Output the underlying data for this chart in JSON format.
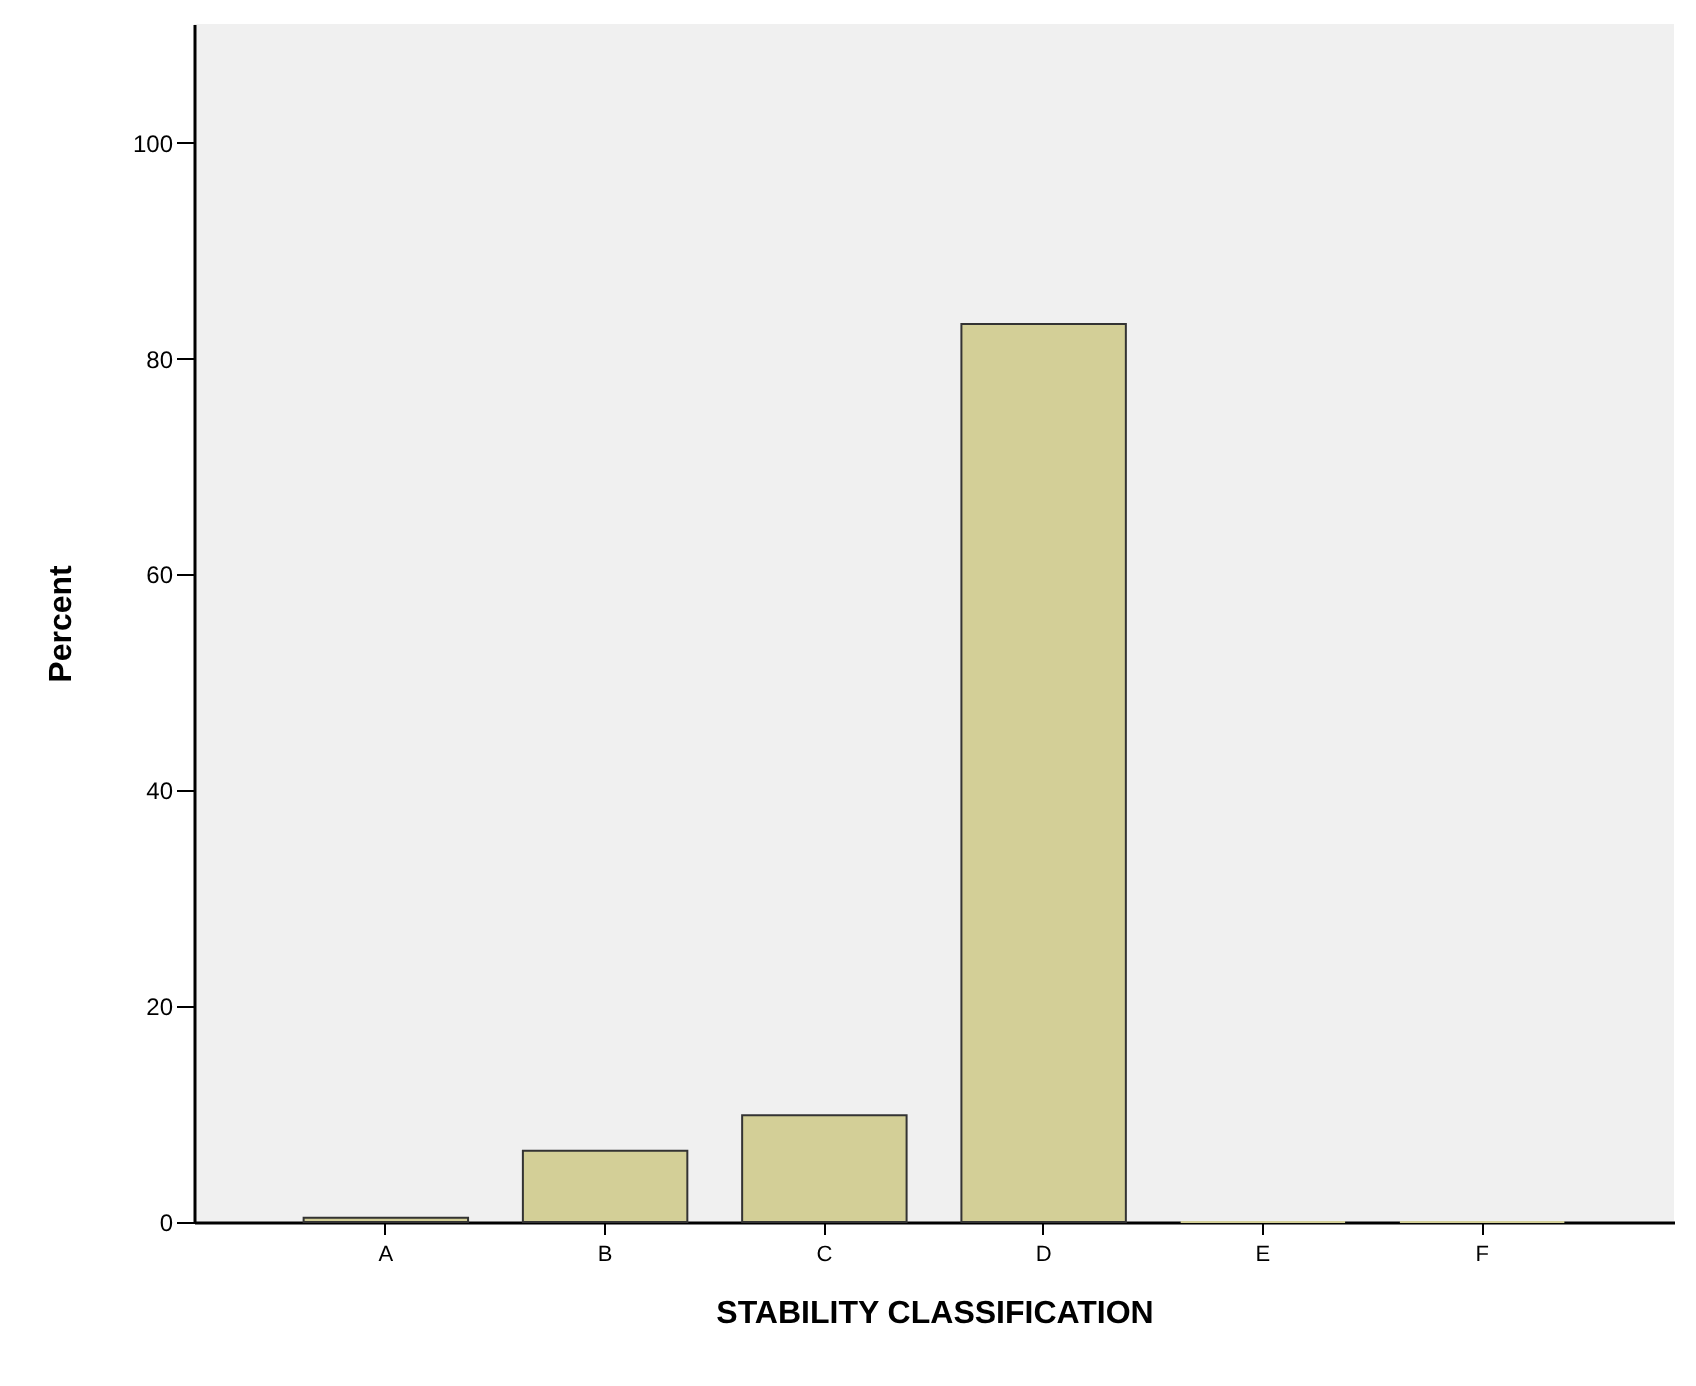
{
  "chart_data": {
    "type": "bar",
    "xlabel": "STABILITY CLASSIFICATION",
    "ylabel": "Percent",
    "categories": [
      "A",
      "B",
      "C",
      "D",
      "E",
      "F"
    ],
    "values": [
      0.4,
      6.6,
      9.9,
      83.2,
      0,
      0
    ],
    "color": "#d3cf97",
    "ylim": [
      0,
      111
    ],
    "yticks": [
      0,
      20,
      40,
      60,
      80,
      100
    ],
    "grid": false
  }
}
